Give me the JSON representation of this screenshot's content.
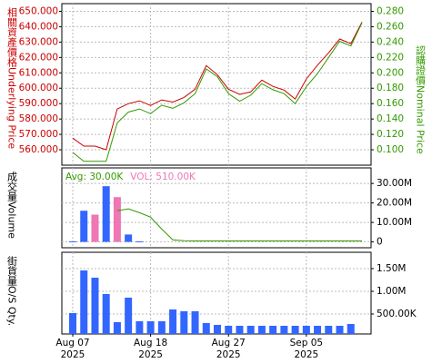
{
  "chart_data": [
    {
      "type": "line",
      "ylabel": "相關資產價格Underlying Price",
      "y2label": "認購證價Nominal Price",
      "ylim": [
        550,
        655
      ],
      "yticks": [
        {
          "value": 560,
          "label": "560.000"
        },
        {
          "value": 570,
          "label": "570.000"
        },
        {
          "value": 580,
          "label": "580.000"
        },
        {
          "value": 590,
          "label": "590.000"
        },
        {
          "value": 600,
          "label": "600.000"
        },
        {
          "value": 610,
          "label": "610.000"
        },
        {
          "value": 620,
          "label": "620.000"
        },
        {
          "value": 630,
          "label": "630.000"
        },
        {
          "value": 640,
          "label": "640.000"
        },
        {
          "value": 650,
          "label": "650.000"
        }
      ],
      "y2lim": [
        0.08,
        0.29
      ],
      "y2ticks": [
        {
          "value": 0.1,
          "label": "0.100"
        },
        {
          "value": 0.12,
          "label": "0.120"
        },
        {
          "value": 0.14,
          "label": "0.140"
        },
        {
          "value": 0.16,
          "label": "0.160"
        },
        {
          "value": 0.18,
          "label": "0.180"
        },
        {
          "value": 0.2,
          "label": "0.200"
        },
        {
          "value": 0.22,
          "label": "0.220"
        },
        {
          "value": 0.24,
          "label": "0.240"
        },
        {
          "value": 0.26,
          "label": "0.260"
        },
        {
          "value": 0.28,
          "label": "0.280"
        }
      ],
      "grid": true,
      "ylabel_color": "#cc0000",
      "y2label_color": "#339900",
      "series": [
        {
          "color": "#cc0000",
          "values": [
            567.6,
            562.4,
            562.4,
            560,
            586.5,
            590,
            591.8,
            588.8,
            592.4,
            591,
            594,
            599.4,
            614.7,
            608.8,
            599.4,
            596,
            597.6,
            605.3,
            601.2,
            598.8,
            593,
            606,
            615,
            623,
            632,
            629,
            643
          ]
        },
        {
          "color": "#339900",
          "axis": "y2",
          "values": [
            0.0965,
            0.085,
            0.085,
            0.085,
            0.135,
            0.149,
            0.153,
            0.147,
            0.158,
            0.154,
            0.161,
            0.173,
            0.205,
            0.195,
            0.173,
            0.163,
            0.171,
            0.186,
            0.178,
            0.173,
            0.16,
            0.182,
            0.199,
            0.22,
            0.241,
            0.235,
            0.265
          ]
        }
      ]
    },
    {
      "type": "bar",
      "ylabel": "成交量Volume",
      "annotations": [
        {
          "text": "Avg: 30.00K",
          "color": "#339900"
        },
        {
          "text": "VOL: 510.00K",
          "color": "#ee77b4"
        }
      ],
      "ylim": [
        -3000000,
        38000000
      ],
      "yticks": [
        0,
        {
          "value": 10000000,
          "label": "10.00M"
        },
        {
          "value": 20000000,
          "label": "20.00M"
        },
        {
          "value": 30000000,
          "label": "30.00M"
        }
      ],
      "grid": true,
      "values": [
        300000,
        16000000,
        14000000,
        28600000,
        23000000,
        3800000,
        300000,
        null,
        null,
        null,
        null,
        null,
        null,
        null,
        null,
        null,
        null,
        null,
        null,
        null,
        null,
        null,
        null,
        null,
        null,
        null,
        null
      ],
      "colors": [
        "#3366ff",
        "#3366ff",
        "#ee77b4",
        "#3366ff",
        "#ee77b4",
        "#3366ff",
        "#3366ff",
        null,
        null,
        null,
        null,
        null,
        null,
        null,
        null,
        null,
        null,
        null,
        null,
        null,
        null,
        null,
        null,
        null,
        null,
        null,
        null
      ],
      "series": [
        {
          "color": "#339900",
          "values": [
            null,
            null,
            null,
            null,
            16000000,
            17000000,
            15000000,
            12700000,
            6600000,
            1000000,
            600000,
            500000,
            500000,
            500000,
            500000,
            500000,
            500000,
            500000,
            500000,
            500000,
            500000,
            500000,
            500000,
            500000,
            500000,
            500000,
            500000
          ]
        }
      ]
    },
    {
      "type": "bar",
      "ylabel": "街貨量O/S Qty.",
      "ylim": [
        60000,
        1860000
      ],
      "yticks": [
        {
          "value": 500000,
          "label": "500.00K"
        },
        {
          "value": 1000000,
          "label": "1.00M"
        },
        {
          "value": 1500000,
          "label": "1.50M"
        }
      ],
      "grid": true,
      "color": "#3366ff",
      "values": [
        520000,
        1460000,
        1300000,
        940000,
        320000,
        860000,
        340000,
        340000,
        340000,
        600000,
        560000,
        560000,
        300000,
        260000,
        240000,
        240000,
        240000,
        240000,
        240000,
        240000,
        240000,
        240000,
        240000,
        240000,
        240000,
        280000,
        null
      ],
      "categories": [
        [
          "Aug 07",
          "2025"
        ],
        null,
        null,
        null,
        null,
        null,
        null,
        [
          "Aug 18",
          "2025"
        ],
        null,
        null,
        null,
        null,
        null,
        null,
        [
          "Aug 27",
          "2025"
        ],
        null,
        null,
        null,
        null,
        null,
        null,
        [
          "Sep 05",
          "2025"
        ],
        null,
        null,
        null,
        null,
        null
      ]
    }
  ]
}
